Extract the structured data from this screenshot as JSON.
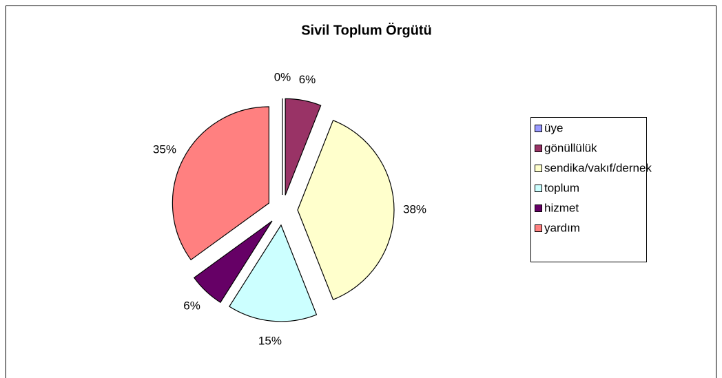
{
  "chart_data": {
    "type": "pie",
    "title": "Sivil Toplum Örgütü",
    "categories": [
      "üye",
      "gönüllülük",
      "sendika/vakıf/dernek",
      "toplum",
      "hizmet",
      "yardım"
    ],
    "values": [
      0,
      6,
      38,
      15,
      6,
      35
    ],
    "value_labels": [
      "0%",
      "6%",
      "38%",
      "15%",
      "6%",
      "35%"
    ],
    "colors": [
      "#9999ff",
      "#993366",
      "#ffffcc",
      "#ccffff",
      "#660066",
      "#ff8080"
    ],
    "legend": "right"
  }
}
